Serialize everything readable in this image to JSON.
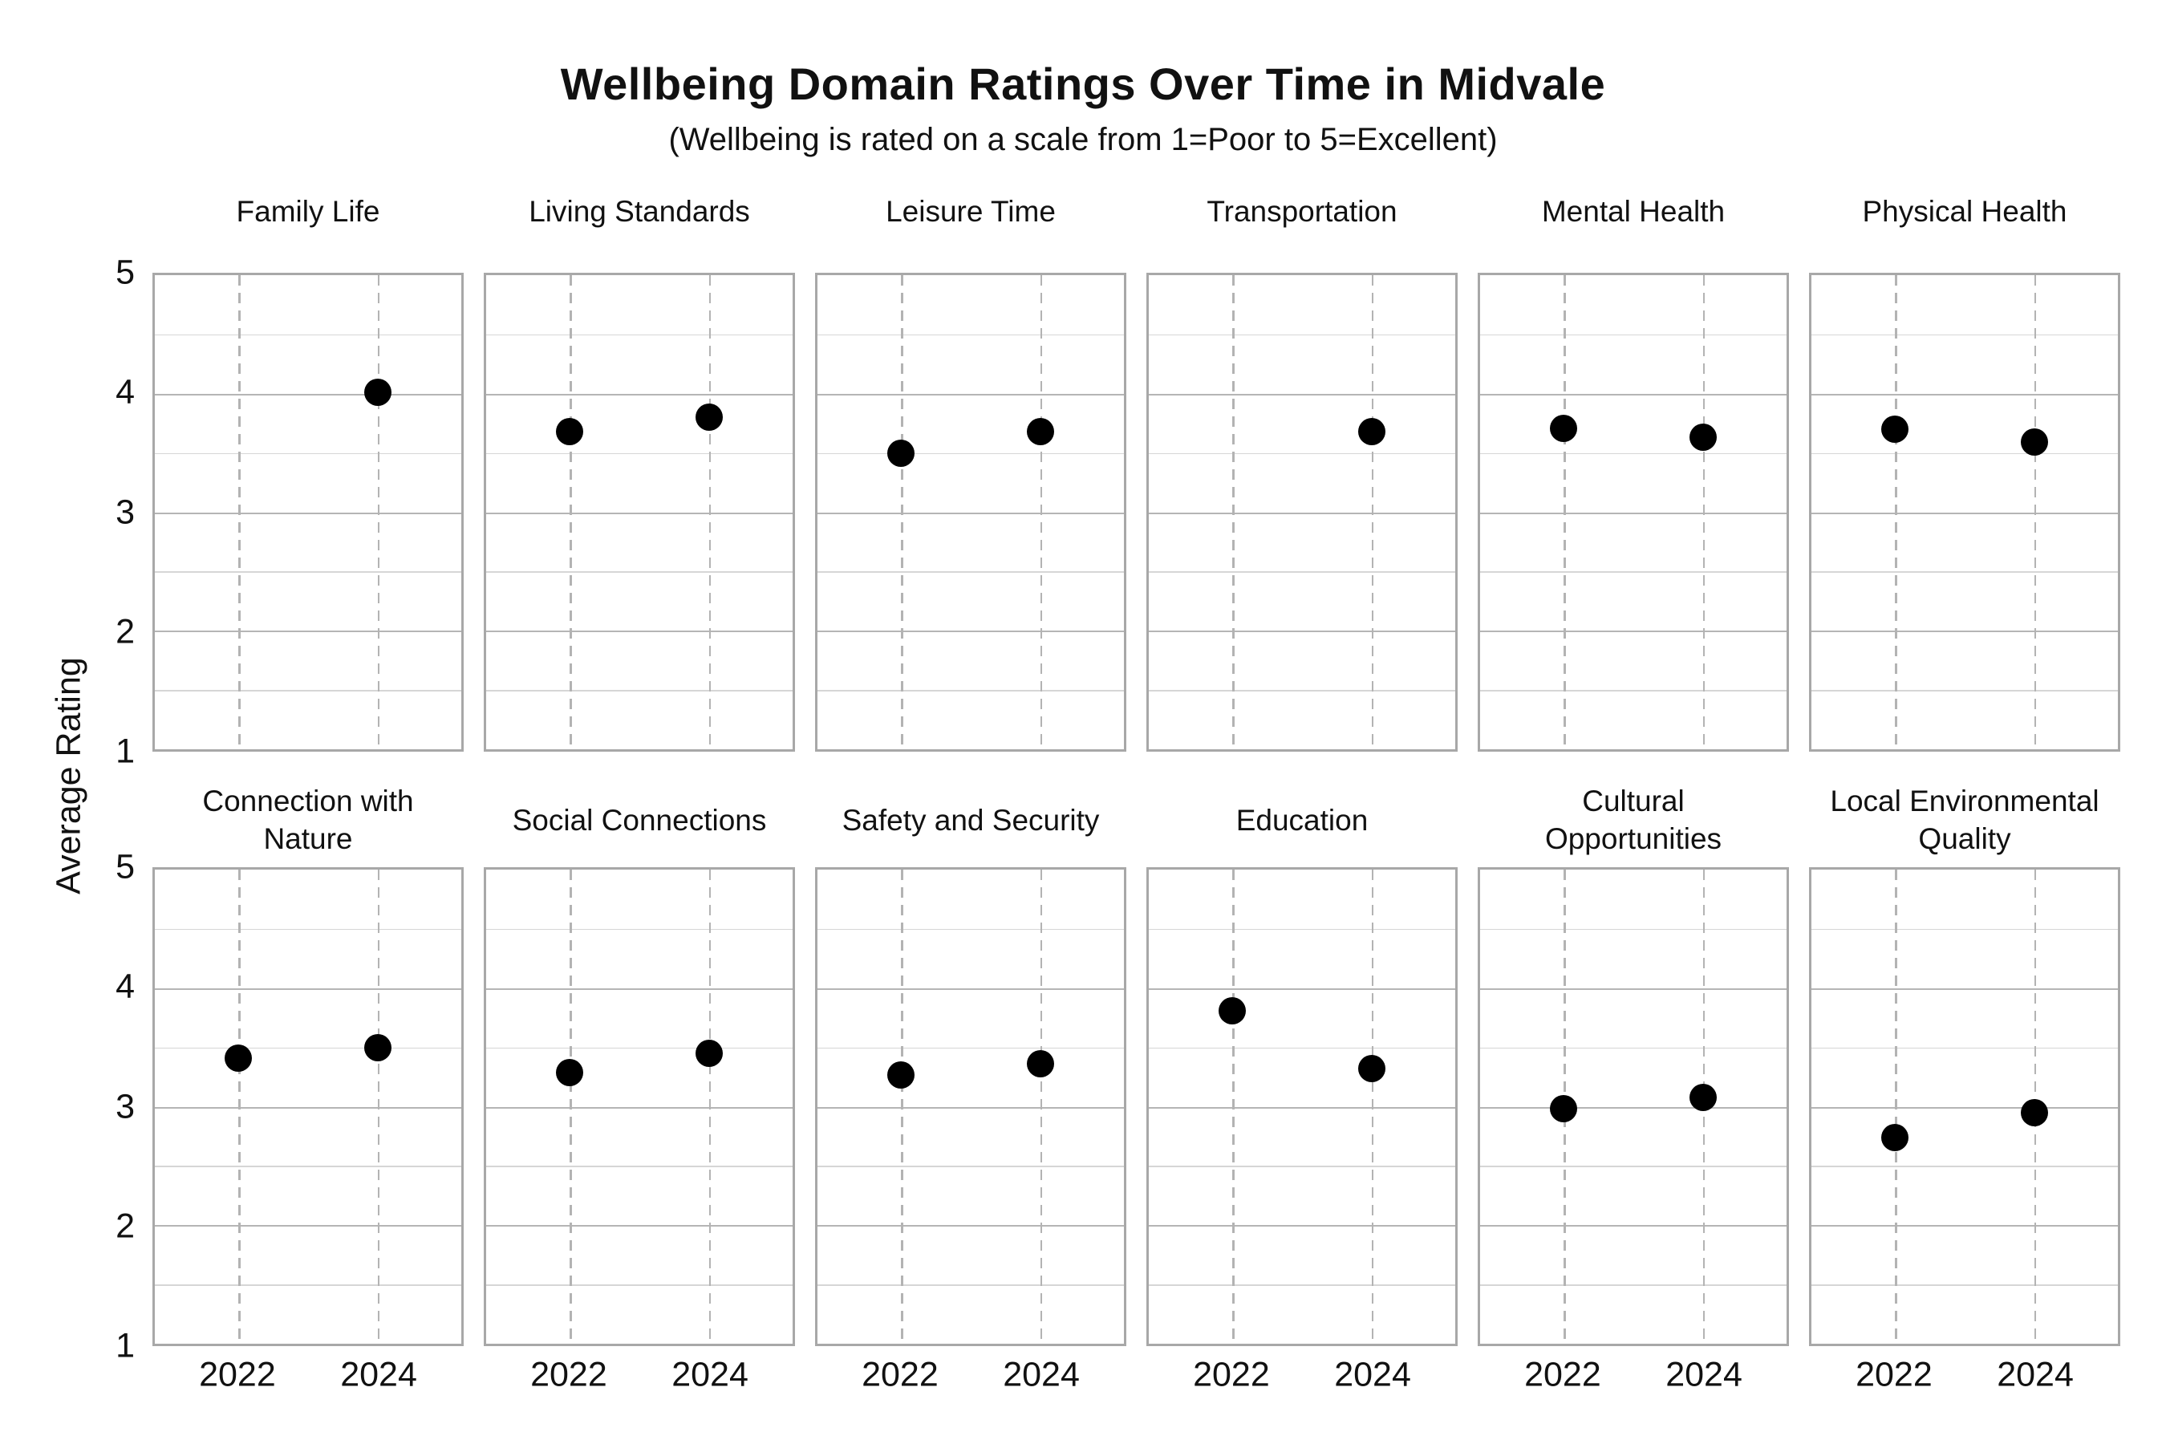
{
  "chart_data": {
    "type": "scatter",
    "title": "Wellbeing Domain Ratings Over Time in Midvale",
    "subtitle": "(Wellbeing is rated on a scale from 1=Poor to 5=Excellent)",
    "ylabel": "Average Rating",
    "categories": [
      "2022",
      "2024"
    ],
    "ylim": [
      1,
      5
    ],
    "yticks": [
      5,
      4,
      3,
      2,
      1
    ],
    "grid": "on",
    "facet_layout": {
      "rows": 2,
      "cols": 6
    },
    "legend": "none",
    "panels": [
      {
        "title": "Family Life",
        "values": [
          null,
          4.01
        ]
      },
      {
        "title": "Living Standards",
        "values": [
          3.68,
          3.8
        ]
      },
      {
        "title": "Leisure Time",
        "values": [
          3.5,
          3.68
        ]
      },
      {
        "title": "Transportation",
        "values": [
          null,
          3.68
        ]
      },
      {
        "title": "Mental Health",
        "values": [
          3.71,
          3.63
        ]
      },
      {
        "title": "Physical Health",
        "values": [
          3.7,
          3.59
        ]
      },
      {
        "title": "Connection with\nNature",
        "values": [
          3.41,
          3.5
        ]
      },
      {
        "title": "Social Connections",
        "values": [
          3.29,
          3.45
        ]
      },
      {
        "title": "Safety and Security",
        "values": [
          3.27,
          3.36
        ]
      },
      {
        "title": "Education",
        "values": [
          3.81,
          3.32
        ]
      },
      {
        "title": "Cultural\nOpportunities",
        "values": [
          2.98,
          3.08
        ]
      },
      {
        "title": "Local Environmental\nQuality",
        "values": [
          2.74,
          2.95
        ]
      }
    ],
    "colors": {
      "dot": "#000000",
      "grid_major": "#b5b5b5",
      "grid_minor": "#d6d6d6",
      "grid_dashed": "#b3b3b3",
      "panel_border": "#a8a8a8",
      "text": "#111111",
      "background": "#ffffff"
    }
  }
}
